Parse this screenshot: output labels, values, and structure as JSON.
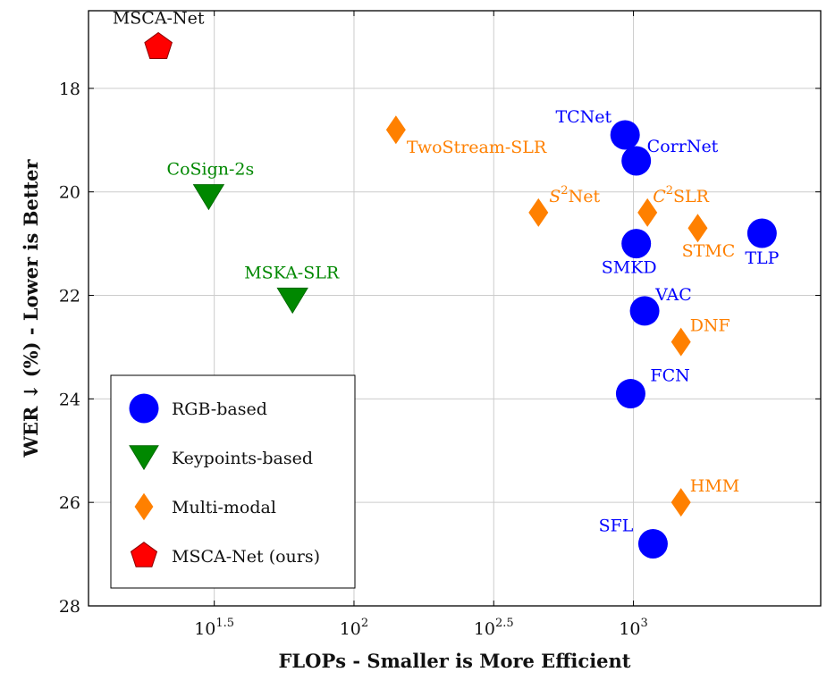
{
  "chart_data": {
    "type": "scatter",
    "xlabel": "FLOPs - Smaller is More Efficient",
    "ylabel": "WER ↓ (%) - Lower is Better",
    "x_scale": "log10",
    "xlim_log10": [
      1.05,
      3.67
    ],
    "ylim": [
      28,
      16.5
    ],
    "y_inverted": true,
    "grid": true,
    "x_ticks": [
      {
        "log10": 1.5,
        "base": "10",
        "exp": "1.5"
      },
      {
        "log10": 2.0,
        "base": "10",
        "exp": "2"
      },
      {
        "log10": 2.5,
        "base": "10",
        "exp": "2.5"
      },
      {
        "log10": 3.0,
        "base": "10",
        "exp": "3"
      }
    ],
    "y_ticks": [
      18,
      20,
      22,
      24,
      26,
      28
    ],
    "legend_position": "bottom-left",
    "categories": [
      {
        "key": "rgb",
        "name": "RGB-based",
        "color": "#0000ff",
        "marker": "circle"
      },
      {
        "key": "kp",
        "name": "Keypoints-based",
        "color": "#008800",
        "marker": "triangle-down"
      },
      {
        "key": "mm",
        "name": "Multi-modal",
        "color": "#ff8000",
        "marker": "diamond"
      },
      {
        "key": "ours",
        "name": "MSCA-Net (ours)",
        "color": "#ff0000",
        "marker": "pentagon"
      }
    ],
    "points": [
      {
        "label": "MSCA-Net",
        "cat": "ours",
        "x_log10": 1.3,
        "y": 17.2,
        "anchor": "middle",
        "dx": 0,
        "dy": -26
      },
      {
        "label": "CoSign-2s",
        "cat": "kp",
        "x_log10": 1.48,
        "y": 20.1,
        "anchor": "middle",
        "dx": 2,
        "dy": -25
      },
      {
        "label": "MSKA-SLR",
        "cat": "kp",
        "x_log10": 1.78,
        "y": 22.1,
        "anchor": "middle",
        "dx": -1,
        "dy": -25
      },
      {
        "label": "TwoStream-SLR",
        "cat": "mm",
        "x_log10": 2.15,
        "y": 18.8,
        "anchor": "start",
        "dx": 12,
        "dy": 26
      },
      {
        "label": "S²Net",
        "cat": "mm",
        "x_log10": 2.66,
        "y": 20.4,
        "anchor": "start",
        "dx": 12,
        "dy": -12,
        "sup_base": "S",
        "sup": "2",
        "sup_rest": "Net"
      },
      {
        "label": "C²SLR",
        "cat": "mm",
        "x_log10": 3.05,
        "y": 20.4,
        "anchor": "start",
        "dx": 6,
        "dy": -12,
        "sup_base": "C",
        "sup": "2",
        "sup_rest": "SLR"
      },
      {
        "label": "STMC",
        "cat": "mm",
        "x_log10": 3.23,
        "y": 20.7,
        "anchor": "middle",
        "dx": 12,
        "dy": 32
      },
      {
        "label": "DNF",
        "cat": "mm",
        "x_log10": 3.17,
        "y": 22.9,
        "anchor": "start",
        "dx": 10,
        "dy": -12
      },
      {
        "label": "HMM",
        "cat": "mm",
        "x_log10": 3.17,
        "y": 26.0,
        "anchor": "start",
        "dx": 10,
        "dy": -12
      },
      {
        "label": "TCNet",
        "cat": "rgb",
        "x_log10": 2.97,
        "y": 18.9,
        "anchor": "end",
        "dx": -15,
        "dy": -14
      },
      {
        "label": "CorrNet",
        "cat": "rgb",
        "x_log10": 3.01,
        "y": 19.4,
        "anchor": "start",
        "dx": 12,
        "dy": -10
      },
      {
        "label": "SMKD",
        "cat": "rgb",
        "x_log10": 3.01,
        "y": 21.0,
        "anchor": "middle",
        "dx": -8,
        "dy": 33
      },
      {
        "label": "VAC",
        "cat": "rgb",
        "x_log10": 3.04,
        "y": 22.3,
        "anchor": "start",
        "dx": 12,
        "dy": -12
      },
      {
        "label": "FCN",
        "cat": "rgb",
        "x_log10": 2.99,
        "y": 23.9,
        "anchor": "start",
        "dx": 22,
        "dy": -14
      },
      {
        "label": "SFL",
        "cat": "rgb",
        "x_log10": 3.07,
        "y": 26.8,
        "anchor": "end",
        "dx": -22,
        "dy": -14
      },
      {
        "label": "TLP",
        "cat": "rgb",
        "x_log10": 3.46,
        "y": 20.8,
        "anchor": "middle",
        "dx": 0,
        "dy": 34
      }
    ]
  }
}
